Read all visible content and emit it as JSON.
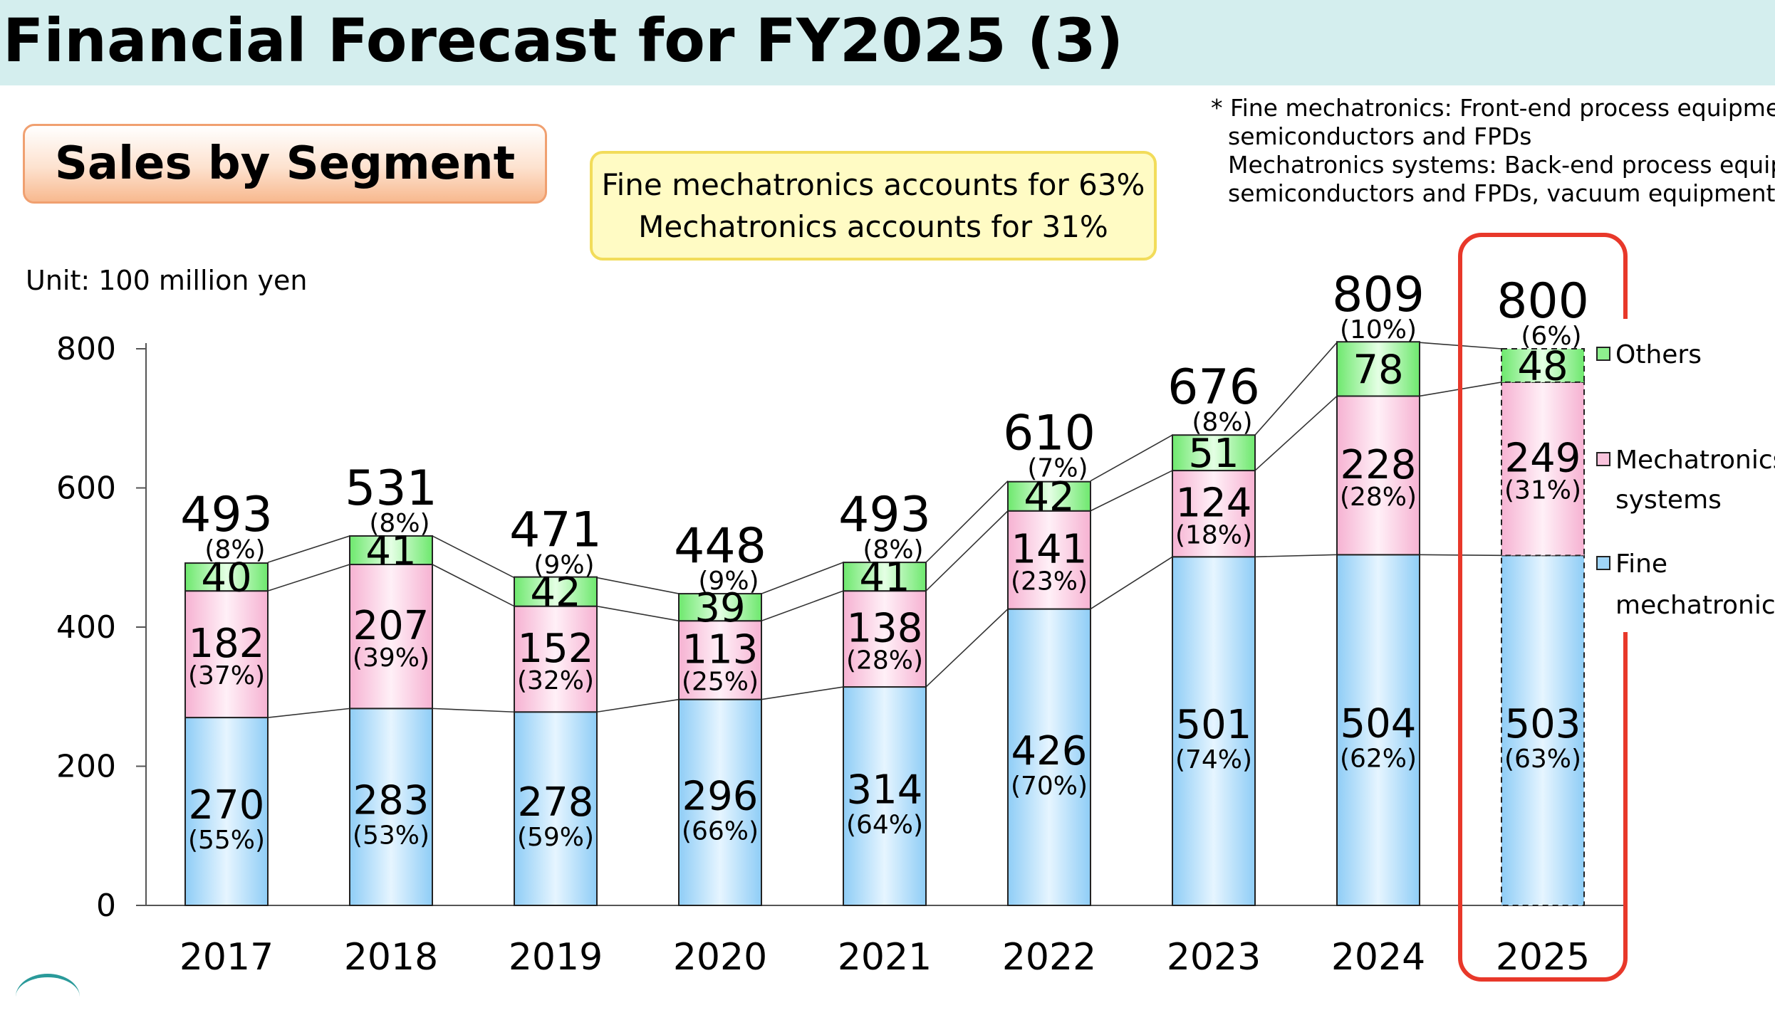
{
  "header": {
    "title": "Financial Forecast for FY2025 (3)"
  },
  "section": {
    "title": "Sales by Segment"
  },
  "callout": {
    "line1": "Fine mechatronics accounts for 63%",
    "line2": "Mechatronics accounts for 31%"
  },
  "notes": {
    "line1": "* Fine mechatronics: Front-end process equipment for",
    "line2": "semiconductors and FPDs",
    "line3": "Mechatronics systems: Back-end process equipment",
    "line4": "semiconductors and FPDs, vacuum equipment"
  },
  "unit": "Unit: 100 million yen",
  "colors": {
    "fine": "#9fd5f8",
    "mechatronics": "#f9c3dc",
    "others": "#8ef08e",
    "highlight": "#e8382a"
  },
  "chart_data": {
    "type": "bar",
    "stacked": true,
    "categories": [
      "2017",
      "2018",
      "2019",
      "2020",
      "2021",
      "2022",
      "2023",
      "2024",
      "2025"
    ],
    "totals": [
      493,
      531,
      471,
      448,
      493,
      610,
      676,
      809,
      800
    ],
    "series": [
      {
        "name": "Fine mechatronics",
        "values": [
          270,
          283,
          278,
          296,
          314,
          426,
          501,
          504,
          503
        ],
        "shares": [
          "(55%)",
          "(53%)",
          "(59%)",
          "(66%)",
          "(64%)",
          "(70%)",
          "(74%)",
          "(62%)",
          "(63%)"
        ]
      },
      {
        "name": "Mechatronics systems",
        "values": [
          182,
          207,
          152,
          113,
          138,
          141,
          124,
          228,
          249
        ],
        "shares": [
          "(37%)",
          "(39%)",
          "(32%)",
          "(25%)",
          "(28%)",
          "(23%)",
          "(18%)",
          "(28%)",
          "(31%)"
        ]
      },
      {
        "name": "Others",
        "values": [
          40,
          41,
          42,
          39,
          41,
          42,
          51,
          78,
          48
        ],
        "shares": [
          "(8%)",
          "(8%)",
          "(9%)",
          "(9%)",
          "(8%)",
          "(7%)",
          "(8%)",
          "(10%)",
          "(6%)"
        ]
      }
    ],
    "legend": {
      "others": "Others",
      "mechatronics_line1": "Mechatronics",
      "mechatronics_line2": "systems",
      "fine_line1": "Fine",
      "fine_line2": "mechatronics"
    },
    "ylim": [
      0,
      800
    ],
    "yticks": [
      "0",
      "200",
      "400",
      "600",
      "800"
    ],
    "forecast_category": "2025",
    "legend_position": "right",
    "grid": false
  }
}
